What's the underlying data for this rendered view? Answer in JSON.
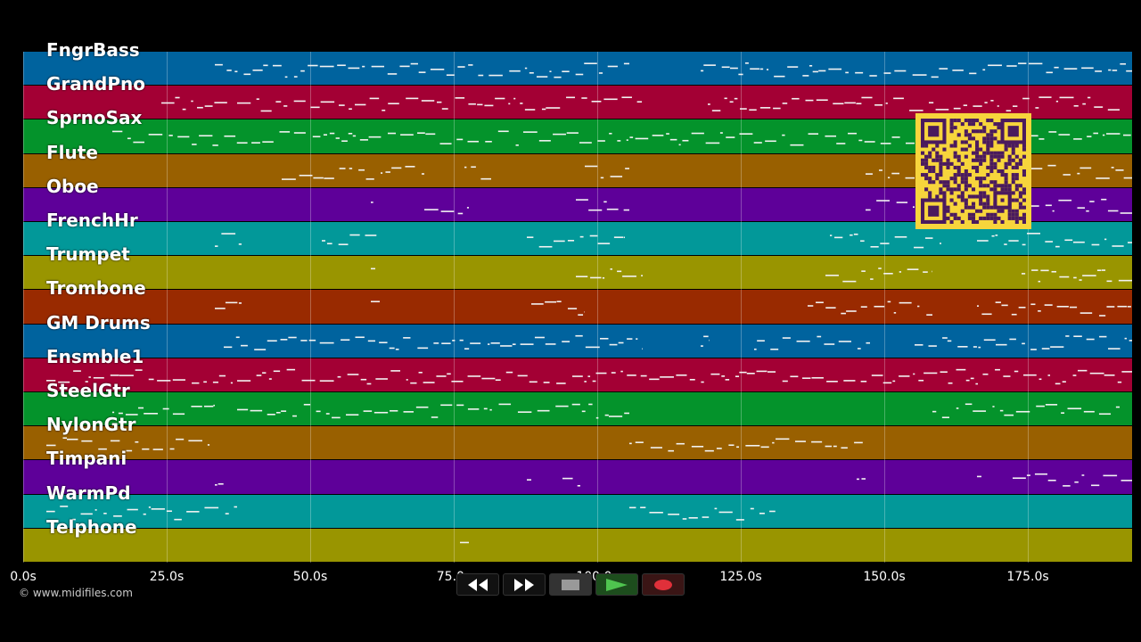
{
  "tracks": [
    {
      "name": "FngrBass",
      "color": "#00639e"
    },
    {
      "name": "GrandPno",
      "color": "#a30034"
    },
    {
      "name": "SprnoSax",
      "color": "#04932b"
    },
    {
      "name": "Flute",
      "color": "#996000"
    },
    {
      "name": "Oboe",
      "color": "#5e0099"
    },
    {
      "name": "FrenchHr",
      "color": "#029899"
    },
    {
      "name": "Trumpet",
      "color": "#999500"
    },
    {
      "name": "Trombone",
      "color": "#992a00"
    },
    {
      "name": "GM Drums",
      "color": "#00639e"
    },
    {
      "name": "Ensmble1",
      "color": "#a30034"
    },
    {
      "name": "SteelGtr",
      "color": "#04932b"
    },
    {
      "name": "NylonGtr",
      "color": "#996000"
    },
    {
      "name": "Timpani",
      "color": "#5e0099"
    },
    {
      "name": "WarmPd",
      "color": "#029899"
    },
    {
      "name": "Telphone",
      "color": "#999500"
    }
  ],
  "timeline": {
    "ticks": [
      "0.0s",
      "25.0s",
      "50.0s",
      "75.0s",
      "100.0s",
      "125.0s",
      "150.0s",
      "175.0s"
    ]
  },
  "copyright": "© www.midifiles.com",
  "transport": {
    "rewind": "rewind-icon",
    "fast_forward": "fast-forward-icon",
    "stop": "stop-icon",
    "play": "play-icon",
    "record": "record-icon"
  },
  "qr": "qr-code"
}
